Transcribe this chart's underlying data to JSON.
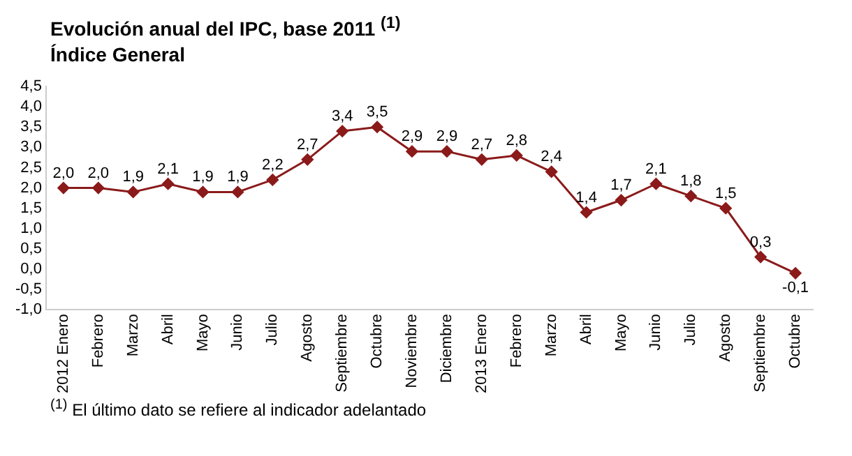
{
  "chart_data": {
    "type": "line",
    "title": "Evolución anual del IPC, base 2011 $^{(1)}$",
    "subtitle": "Índice General",
    "categories": [
      "2012 Enero",
      "Febrero",
      "Marzo",
      "Abril",
      "Mayo",
      "Junio",
      "Julio",
      "Agosto",
      "Septiembre",
      "Octubre",
      "Noviembre",
      "Diciembre",
      "2013 Enero",
      "Febrero",
      "Marzo",
      "Abril",
      "Mayo",
      "Junio",
      "Julio",
      "Agosto",
      "Septiembre",
      "Octubre"
    ],
    "series": [
      {
        "color": "#8b1a1a",
        "values": [
          2.0,
          2.0,
          1.9,
          2.1,
          1.9,
          1.9,
          2.2,
          2.7,
          3.4,
          3.5,
          2.9,
          2.9,
          2.7,
          2.8,
          2.4,
          1.4,
          1.7,
          2.1,
          1.8,
          1.5,
          0.3,
          -0.1
        ],
        "value_labels": [
          "2,0",
          "2,0",
          "1,9",
          "2,1",
          "1,9",
          "1,9",
          "2,2",
          "2,7",
          "3,4",
          "3,5",
          "2,9",
          "2,9",
          "2,7",
          "2,8",
          "2,4",
          "1,4",
          "1,7",
          "2,1",
          "1,8",
          "1,5",
          "0,3",
          "-0,1"
        ]
      }
    ],
    "ylim": [
      -1.0,
      4.5
    ],
    "yticks": [
      {
        "value": -1.0,
        "label": "-1,0"
      },
      {
        "value": -0.5,
        "label": "-0,5"
      },
      {
        "value": 0,
        "label": "0,0"
      },
      {
        "value": 0.5,
        "label": "0,5"
      },
      {
        "value": 1.0,
        "label": "1,0"
      },
      {
        "value": 1.5,
        "label": "1,5"
      },
      {
        "value": 2.0,
        "label": "2,0"
      },
      {
        "value": 2.5,
        "label": "2,5"
      },
      {
        "value": 3.0,
        "label": "3,0"
      },
      {
        "value": 3.5,
        "label": "3,5"
      },
      {
        "value": 4.0,
        "label": "4,0"
      },
      {
        "value": 4.5,
        "label": "4,5"
      }
    ],
    "grid": false,
    "legend": false,
    "marker": "diamond",
    "line_style": "solid",
    "annotations": [
      "$^{(1)}$ El último dato se refiere al indicador adelantado"
    ]
  }
}
